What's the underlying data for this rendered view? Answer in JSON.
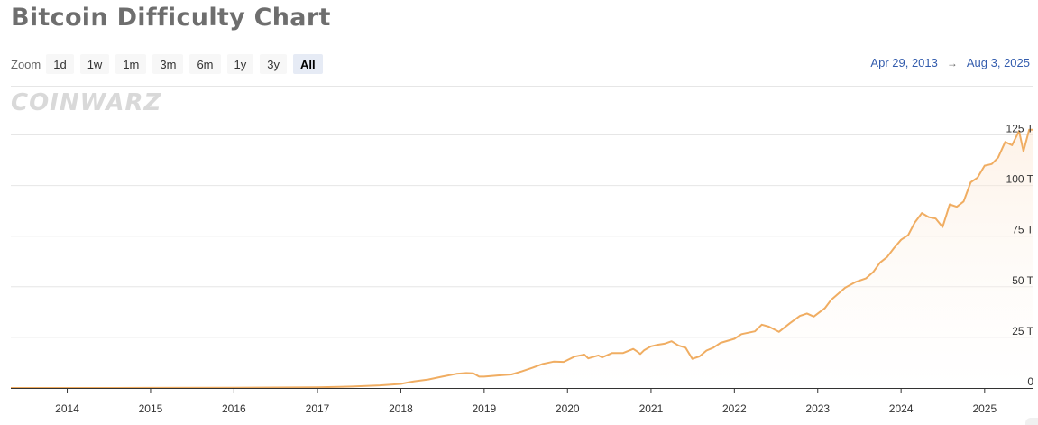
{
  "page": {
    "title": "Bitcoin Difficulty Chart"
  },
  "zoom": {
    "label": "Zoom",
    "buttons": [
      "1d",
      "1w",
      "1m",
      "3m",
      "6m",
      "1y",
      "3y",
      "All"
    ],
    "active": "All"
  },
  "range": {
    "from": "Apr 29, 2013",
    "arrow": "→",
    "to": "Aug 3, 2025"
  },
  "watermark": "COINWARZ",
  "colors": {
    "line": "#f0ad62",
    "fill_top": "#fbe3cc",
    "fill_bottom": "#ffffff",
    "grid": "#e6e6e6",
    "axis": "#333333"
  },
  "chart_data": {
    "type": "area",
    "title": "Bitcoin Difficulty Chart",
    "xlabel": "",
    "ylabel": "",
    "x_ticks": [
      "2014",
      "2015",
      "2016",
      "2017",
      "2018",
      "2019",
      "2020",
      "2021",
      "2022",
      "2023",
      "2024",
      "2025"
    ],
    "y_ticks": [
      "0",
      "25 T",
      "50 T",
      "75 T",
      "100 T",
      "125 T"
    ],
    "y_tick_values": [
      0,
      25,
      50,
      75,
      100,
      125
    ],
    "ylim": [
      0,
      127
    ],
    "xlim": [
      "2013-04-29",
      "2025-08-03"
    ],
    "grid": true,
    "series": [
      {
        "unit": "T",
        "points": [
          [
            "2013-04-29",
            0.01
          ],
          [
            "2014-01-01",
            0.0015
          ],
          [
            "2015-01-01",
            0.04
          ],
          [
            "2016-01-01",
            0.1
          ],
          [
            "2017-01-01",
            0.35
          ],
          [
            "2017-06-01",
            0.7
          ],
          [
            "2017-10-01",
            1.3
          ],
          [
            "2018-01-01",
            2.0
          ],
          [
            "2018-02-01",
            2.7
          ],
          [
            "2018-03-01",
            3.3
          ],
          [
            "2018-05-01",
            4.2
          ],
          [
            "2018-07-01",
            5.6
          ],
          [
            "2018-09-01",
            7.0
          ],
          [
            "2018-10-15",
            7.4
          ],
          [
            "2018-11-15",
            7.2
          ],
          [
            "2018-12-10",
            5.6
          ],
          [
            "2019-01-01",
            5.6
          ],
          [
            "2019-03-01",
            6.2
          ],
          [
            "2019-05-01",
            6.7
          ],
          [
            "2019-06-15",
            8.2
          ],
          [
            "2019-08-01",
            10.0
          ],
          [
            "2019-09-15",
            11.9
          ],
          [
            "2019-11-01",
            13.0
          ],
          [
            "2019-12-15",
            12.9
          ],
          [
            "2020-02-01",
            15.5
          ],
          [
            "2020-03-15",
            16.5
          ],
          [
            "2020-04-01",
            14.6
          ],
          [
            "2020-05-15",
            16.1
          ],
          [
            "2020-06-01",
            15.1
          ],
          [
            "2020-07-15",
            17.3
          ],
          [
            "2020-09-01",
            17.3
          ],
          [
            "2020-10-15",
            19.3
          ],
          [
            "2020-11-01",
            18.0
          ],
          [
            "2020-11-15",
            16.8
          ],
          [
            "2020-12-01",
            18.6
          ],
          [
            "2021-01-01",
            20.6
          ],
          [
            "2021-02-01",
            21.4
          ],
          [
            "2021-03-01",
            21.9
          ],
          [
            "2021-04-01",
            23.1
          ],
          [
            "2021-05-01",
            21.0
          ],
          [
            "2021-06-01",
            19.9
          ],
          [
            "2021-07-01",
            14.4
          ],
          [
            "2021-08-01",
            15.6
          ],
          [
            "2021-09-01",
            18.5
          ],
          [
            "2021-10-01",
            19.9
          ],
          [
            "2021-11-01",
            22.3
          ],
          [
            "2022-01-01",
            24.3
          ],
          [
            "2022-02-01",
            26.6
          ],
          [
            "2022-04-01",
            28.0
          ],
          [
            "2022-05-01",
            31.3
          ],
          [
            "2022-06-01",
            30.3
          ],
          [
            "2022-07-15",
            27.7
          ],
          [
            "2022-09-01",
            32.0
          ],
          [
            "2022-10-15",
            35.6
          ],
          [
            "2022-11-15",
            36.8
          ],
          [
            "2022-12-15",
            35.3
          ],
          [
            "2023-02-01",
            39.4
          ],
          [
            "2023-03-01",
            43.6
          ],
          [
            "2023-05-01",
            49.5
          ],
          [
            "2023-06-15",
            52.3
          ],
          [
            "2023-08-01",
            54.2
          ],
          [
            "2023-09-01",
            57.3
          ],
          [
            "2023-10-01",
            62.0
          ],
          [
            "2023-11-01",
            64.7
          ],
          [
            "2023-12-01",
            69.1
          ],
          [
            "2024-01-01",
            73.2
          ],
          [
            "2024-02-01",
            75.5
          ],
          [
            "2024-03-01",
            81.7
          ],
          [
            "2024-04-01",
            86.4
          ],
          [
            "2024-05-01",
            84.4
          ],
          [
            "2024-06-01",
            83.7
          ],
          [
            "2024-07-01",
            79.5
          ],
          [
            "2024-08-01",
            90.7
          ],
          [
            "2024-09-01",
            89.5
          ],
          [
            "2024-10-01",
            92.1
          ],
          [
            "2024-11-01",
            101.6
          ],
          [
            "2024-12-01",
            103.9
          ],
          [
            "2025-01-01",
            109.8
          ],
          [
            "2025-02-01",
            110.6
          ],
          [
            "2025-03-01",
            113.8
          ],
          [
            "2025-04-01",
            121.5
          ],
          [
            "2025-05-01",
            119.9
          ],
          [
            "2025-06-01",
            126.9
          ],
          [
            "2025-06-20",
            116.9
          ],
          [
            "2025-07-15",
            127.6
          ],
          [
            "2025-08-03",
            127.6
          ]
        ]
      }
    ]
  }
}
